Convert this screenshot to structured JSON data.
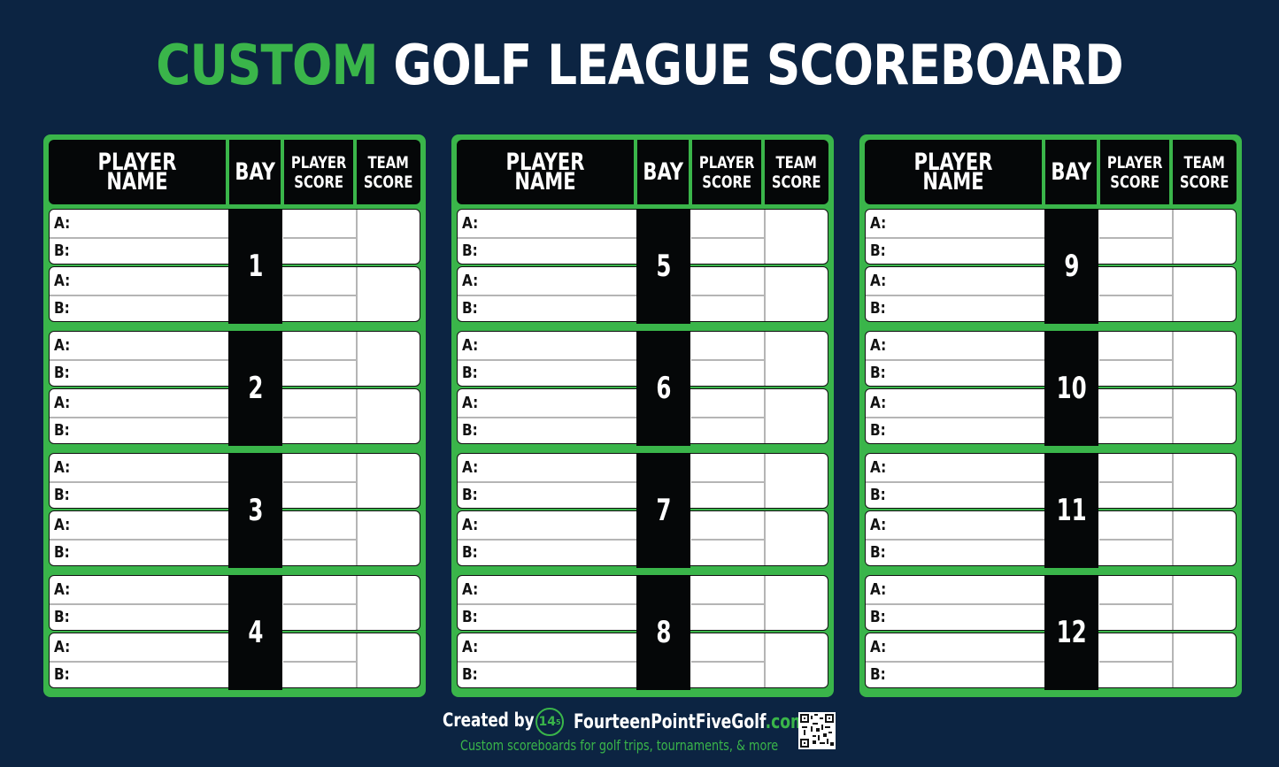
{
  "title": {
    "highlight": "CUSTOM",
    "rest": "GOLF LEAGUE SCOREBOARD"
  },
  "colors": {
    "background": "#0c2442",
    "accent": "#3ab54a",
    "header": "#050708"
  },
  "table_headers": {
    "player_name": "PLAYER NAME",
    "bay": "BAY",
    "player_score": "PLAYER\nSCORE",
    "team_score": "TEAM\nSCORE"
  },
  "row_labels": {
    "a": "A:",
    "b": "B:"
  },
  "panels": [
    {
      "bays": [
        "1",
        "2",
        "3",
        "4"
      ]
    },
    {
      "bays": [
        "5",
        "6",
        "7",
        "8"
      ]
    },
    {
      "bays": [
        "9",
        "10",
        "11",
        "12"
      ]
    }
  ],
  "footer": {
    "created_by": "Created by",
    "logo_text": "14.5",
    "site_name": "FourteenPointFiveGolf",
    "site_domain": ".com",
    "tagline": "Custom scoreboards for golf trips, tournaments, & more",
    "qr_icon": "qr-code-icon"
  }
}
